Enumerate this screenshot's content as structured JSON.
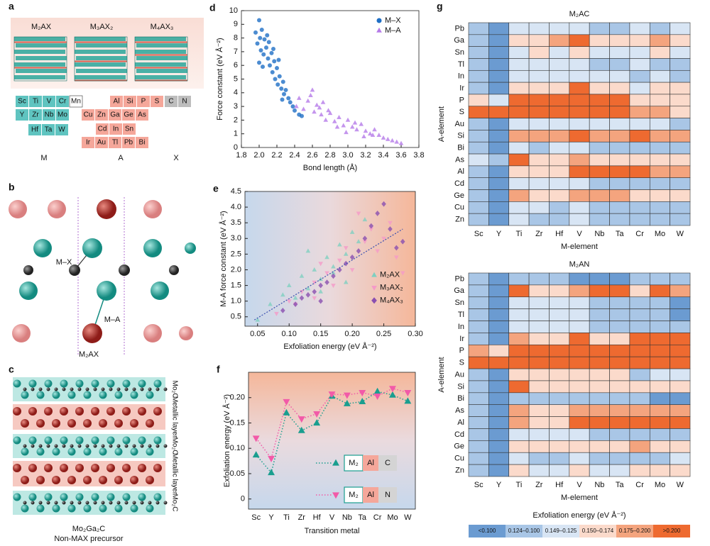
{
  "diagrams": {
    "a": {
      "panel": "a",
      "structures": [
        "M₂AX",
        "M₃AX₂",
        "M₄AX₃"
      ],
      "groups": [
        {
          "label": "M",
          "rows": [
            [
              "Sc",
              "Ti",
              "V",
              "Cr",
              "Mn"
            ],
            [
              "Y",
              "Zr",
              "Nb",
              "Mo"
            ],
            [
              "Hf",
              "Ta",
              "W"
            ]
          ]
        },
        {
          "label": "A",
          "rows": [
            [
              "Al",
              "Si",
              "P",
              "S"
            ],
            [
              "Cu",
              "Zn",
              "Ga",
              "Ge",
              "As"
            ],
            [
              "Cd",
              "In",
              "Sn"
            ],
            [
              "Ir",
              "Au",
              "Tl",
              "Pb",
              "Bi"
            ]
          ]
        },
        {
          "label": "X",
          "rows": [
            [
              "C",
              "N"
            ]
          ]
        }
      ]
    },
    "b": {
      "panel": "b",
      "bond_mx": "M–X",
      "bond_ma": "M–A",
      "caption": "M₂AX"
    },
    "c": {
      "panel": "c",
      "layers": [
        "Mo₂C",
        "Metallic layer",
        "Mo₂C",
        "Metallic layer",
        "Mo₂C"
      ],
      "caption": [
        "Mo₂Ga₂C",
        "Non-MAX precursor"
      ]
    }
  },
  "legend": {
    "title": "Exfoliation energy (eV Å⁻²)",
    "bins": [
      "<0.100",
      "0.124–0.100",
      "0.149–0.125",
      "0.150–0.174",
      "0.175–0.200",
      ">0.200"
    ],
    "colors": [
      "#6b9bd1",
      "#a9c6e6",
      "#d8e5f4",
      "#fbdacb",
      "#f4a47e",
      "#ee6a30"
    ]
  },
  "chart_data": [
    {
      "type": "scatter",
      "panel": "d",
      "x_label": "Bond length (Å)",
      "y_label": "Force constant (eV Å⁻²)",
      "xlim": [
        1.8,
        3.8
      ],
      "xticks": [
        1.8,
        {
          "value": 2,
          "label": "2.0"
        },
        2.2,
        2.4,
        2.6,
        2.8,
        {
          "value": 3,
          "label": "3.0"
        },
        3.2,
        3.4,
        3.6,
        3.8
      ],
      "ylim": [
        0,
        10
      ],
      "yticks": [
        0,
        1,
        2,
        3,
        4,
        5,
        6,
        7,
        8,
        9,
        10
      ],
      "legend_position": "upper right",
      "series": [
        {
          "name": "M–X",
          "color": "#1f6fc5",
          "marker": "circle",
          "x": [
            1.96,
            1.98,
            2.0,
            2.01,
            2.02,
            2.03,
            2.05,
            2.06,
            2.08,
            2.1,
            2.11,
            2.12,
            2.14,
            2.15,
            2.17,
            2.18,
            2.2,
            2.21,
            2.23,
            2.25,
            2.27,
            2.28,
            2.3,
            2.33,
            2.35,
            2.38,
            2.4,
            2.45,
            2.48,
            2.0,
            2.04,
            2.09,
            2.16,
            2.22,
            2.26
          ],
          "values": [
            8.4,
            7.6,
            9.3,
            8.0,
            7.1,
            8.6,
            6.8,
            7.9,
            7.3,
            6.5,
            7.7,
            6.0,
            6.9,
            5.5,
            6.3,
            5.0,
            5.8,
            4.6,
            5.2,
            4.3,
            4.8,
            3.9,
            4.2,
            3.6,
            3.3,
            3.0,
            2.7,
            2.4,
            2.3,
            6.2,
            5.9,
            8.2,
            7.2,
            6.4,
            3.5
          ]
        },
        {
          "name": "M–A",
          "color": "#b57be8",
          "marker": "triangle",
          "x": [
            2.42,
            2.45,
            2.5,
            2.55,
            2.6,
            2.62,
            2.65,
            2.7,
            2.72,
            2.75,
            2.8,
            2.85,
            2.9,
            2.95,
            3.0,
            3.05,
            3.1,
            3.15,
            3.2,
            3.25,
            3.3,
            3.35,
            3.4,
            3.45,
            3.5,
            3.55,
            3.6,
            2.58,
            2.68,
            2.78,
            2.88,
            2.98,
            3.08,
            3.18,
            3.28
          ],
          "values": [
            3.0,
            3.6,
            2.8,
            3.4,
            4.2,
            2.6,
            3.1,
            2.4,
            3.3,
            2.0,
            2.5,
            1.9,
            2.2,
            1.6,
            2.0,
            1.5,
            1.3,
            1.7,
            1.2,
            1.0,
            1.3,
            0.9,
            0.7,
            0.6,
            0.5,
            0.4,
            0.3,
            3.8,
            2.9,
            2.7,
            1.5,
            1.1,
            1.8,
            0.8,
            0.9
          ]
        }
      ]
    },
    {
      "type": "scatter",
      "panel": "e",
      "x_label": "Exfoliation energy (eV Å⁻²)",
      "y_label": "M-A force constant (eV Å⁻²)",
      "background": "horizontal",
      "legend_position": "lower right",
      "xlim": [
        0.03,
        0.3
      ],
      "xticks": [
        0.05,
        {
          "value": 0.1,
          "label": "0.10"
        },
        0.15,
        {
          "value": 0.2,
          "label": "0.20"
        },
        0.25,
        {
          "value": 0.3,
          "label": "0.30"
        }
      ],
      "ylim": [
        0.2,
        4.5
      ],
      "yticks": [
        0.5,
        {
          "value": 1,
          "label": "1.0"
        },
        1.5,
        {
          "value": 2,
          "label": "2.0"
        },
        2.5,
        {
          "value": 3,
          "label": "3.0"
        },
        3.5,
        {
          "value": 4,
          "label": "4.0"
        },
        4.5
      ],
      "trend": {
        "color": "#3a4fb0",
        "x": [
          0.045,
          0.28
        ],
        "values": [
          0.4,
          3.3
        ]
      },
      "series": [
        {
          "name": "M₂AX",
          "color": "#7fcfc0",
          "marker": "triangle",
          "x": [
            0.05,
            0.07,
            0.09,
            0.1,
            0.11,
            0.12,
            0.13,
            0.14,
            0.15,
            0.16,
            0.17,
            0.18,
            0.19,
            0.2,
            0.21,
            0.22,
            0.13,
            0.15,
            0.17,
            0.19
          ],
          "values": [
            0.4,
            0.9,
            1.2,
            1.5,
            1.1,
            1.8,
            1.4,
            2.0,
            1.7,
            2.4,
            2.1,
            2.8,
            2.5,
            3.2,
            2.9,
            3.6,
            2.6,
            1.3,
            1.9,
            1.6
          ]
        },
        {
          "name": "M₃AX₂",
          "color": "#f59ac8",
          "marker": "triangle-down",
          "x": [
            0.08,
            0.1,
            0.12,
            0.14,
            0.15,
            0.16,
            0.18,
            0.19,
            0.2,
            0.22,
            0.23,
            0.24,
            0.25,
            0.26,
            0.27,
            0.28,
            0.14,
            0.17,
            0.21,
            0.11
          ],
          "values": [
            0.6,
            1.0,
            1.3,
            1.6,
            2.2,
            1.9,
            2.3,
            2.7,
            2.0,
            2.9,
            3.3,
            2.6,
            3.0,
            3.5,
            2.4,
            1.9,
            1.1,
            1.5,
            3.8,
            0.9
          ]
        },
        {
          "name": "M₄AX₃",
          "color": "#8a4fb0",
          "marker": "diamond",
          "x": [
            0.09,
            0.11,
            0.12,
            0.13,
            0.14,
            0.15,
            0.16,
            0.17,
            0.18,
            0.19,
            0.2,
            0.21,
            0.22,
            0.23,
            0.24,
            0.25,
            0.26,
            0.27,
            0.28,
            0.15
          ],
          "values": [
            0.7,
            0.9,
            1.1,
            1.2,
            1.3,
            1.5,
            1.6,
            1.8,
            2.0,
            2.2,
            2.4,
            2.6,
            3.0,
            3.4,
            3.8,
            4.1,
            3.3,
            2.7,
            2.9,
            1.0
          ]
        }
      ]
    },
    {
      "type": "line",
      "panel": "f",
      "x_label": "Transition metal",
      "y_label": "Exfoliation energy (eV Å⁻²)",
      "background": "vertical",
      "categories": [
        "Sc",
        "Y",
        "Ti",
        "Zr",
        "Hf",
        "V",
        "Nb",
        "Ta",
        "Cr",
        "Mo",
        "W"
      ],
      "ylim": [
        -0.02,
        0.25
      ],
      "yticks": [
        0,
        0.05,
        {
          "value": 0.1,
          "label": "0.10"
        },
        0.15,
        {
          "value": 0.2,
          "label": "0.20"
        }
      ],
      "series": [
        {
          "label_boxes": [
            "M₂",
            "Al",
            "C"
          ],
          "color": "#1a9e8f",
          "marker": "triangle",
          "values": [
            0.087,
            0.052,
            0.17,
            0.135,
            0.15,
            0.203,
            0.188,
            0.192,
            0.212,
            0.205,
            0.193
          ]
        },
        {
          "label_boxes": [
            "M₂",
            "Al",
            "N"
          ],
          "color": "#f25aa8",
          "marker": "triangle-down",
          "values": [
            0.12,
            0.08,
            0.192,
            0.158,
            0.168,
            0.207,
            0.205,
            0.21,
            0.203,
            0.218,
            0.21
          ]
        }
      ]
    },
    {
      "type": "heatmap",
      "panel": "g",
      "title": "M₂AC",
      "x_label": "M-element",
      "y_label": "A-element",
      "columns": [
        "Sc",
        "Y",
        "Ti",
        "Zr",
        "Hf",
        "V",
        "Nb",
        "Ta",
        "Cr",
        "Mo",
        "W"
      ],
      "rows": [
        "Pb",
        "Ga",
        "Sn",
        "Tl",
        "In",
        "Ir",
        "P",
        "S",
        "Au",
        "Si",
        "Bi",
        "As",
        "Al",
        "Cd",
        "Ge",
        "Cu",
        "Zn"
      ],
      "values": [
        [
          1,
          0,
          2,
          2,
          2,
          2,
          1,
          1,
          2,
          1,
          2
        ],
        [
          1,
          0,
          3,
          3,
          4,
          5,
          3,
          3,
          3,
          4,
          3
        ],
        [
          1,
          0,
          2,
          3,
          2,
          3,
          2,
          2,
          2,
          3,
          2
        ],
        [
          1,
          0,
          2,
          2,
          2,
          2,
          1,
          1,
          2,
          1,
          1
        ],
        [
          1,
          0,
          2,
          2,
          2,
          2,
          2,
          2,
          1,
          2,
          1
        ],
        [
          1,
          0,
          3,
          3,
          3,
          5,
          3,
          3,
          2,
          3,
          3
        ],
        [
          3,
          2,
          5,
          5,
          5,
          5,
          5,
          5,
          3,
          3,
          3
        ],
        [
          5,
          5,
          5,
          5,
          5,
          5,
          5,
          5,
          4,
          4,
          3
        ],
        [
          1,
          0,
          2,
          2,
          2,
          2,
          2,
          2,
          2,
          2,
          1
        ],
        [
          1,
          0,
          4,
          4,
          4,
          5,
          4,
          4,
          5,
          4,
          4
        ],
        [
          1,
          0,
          2,
          1,
          2,
          2,
          1,
          1,
          1,
          1,
          1
        ],
        [
          2,
          1,
          5,
          3,
          3,
          4,
          3,
          3,
          3,
          3,
          3
        ],
        [
          1,
          0,
          3,
          3,
          3,
          5,
          5,
          5,
          5,
          4,
          4
        ],
        [
          1,
          0,
          2,
          2,
          2,
          2,
          1,
          1,
          1,
          1,
          1
        ],
        [
          1,
          0,
          4,
          3,
          3,
          4,
          4,
          4,
          3,
          3,
          3
        ],
        [
          1,
          0,
          2,
          2,
          1,
          2,
          1,
          1,
          1,
          1,
          1
        ],
        [
          1,
          0,
          2,
          1,
          1,
          2,
          1,
          1,
          1,
          1,
          1
        ]
      ]
    },
    {
      "type": "heatmap",
      "title": "M₂AN",
      "x_label": "M-element",
      "y_label": "A-element",
      "columns": [
        "Sc",
        "Y",
        "Ti",
        "Zr",
        "Hf",
        "V",
        "Nb",
        "Ta",
        "Cr",
        "Mo",
        "W"
      ],
      "rows": [
        "Pb",
        "Ga",
        "Sn",
        "Tl",
        "In",
        "Ir",
        "P",
        "S",
        "Au",
        "Si",
        "Bi",
        "As",
        "Al",
        "Cd",
        "Ge",
        "Cu",
        "Zn"
      ],
      "values": [
        [
          1,
          0,
          1,
          1,
          1,
          0,
          0,
          0,
          1,
          1,
          1
        ],
        [
          1,
          0,
          5,
          3,
          3,
          4,
          5,
          5,
          3,
          5,
          4
        ],
        [
          1,
          0,
          2,
          2,
          2,
          2,
          1,
          1,
          1,
          1,
          0
        ],
        [
          1,
          0,
          2,
          2,
          2,
          2,
          1,
          1,
          1,
          1,
          0
        ],
        [
          1,
          0,
          2,
          2,
          2,
          2,
          1,
          1,
          1,
          1,
          1
        ],
        [
          1,
          0,
          4,
          3,
          3,
          5,
          3,
          3,
          5,
          5,
          5
        ],
        [
          4,
          3,
          5,
          5,
          5,
          5,
          5,
          5,
          5,
          5,
          5
        ],
        [
          5,
          5,
          5,
          5,
          5,
          5,
          5,
          5,
          5,
          5,
          5
        ],
        [
          1,
          0,
          3,
          3,
          3,
          3,
          3,
          3,
          1,
          2,
          2
        ],
        [
          1,
          0,
          5,
          3,
          3,
          3,
          3,
          3,
          3,
          3,
          3
        ],
        [
          1,
          0,
          1,
          1,
          1,
          1,
          1,
          1,
          1,
          0,
          0
        ],
        [
          1,
          0,
          4,
          3,
          3,
          4,
          4,
          4,
          4,
          4,
          4
        ],
        [
          1,
          0,
          4,
          3,
          3,
          5,
          5,
          5,
          5,
          5,
          5
        ],
        [
          1,
          0,
          2,
          2,
          2,
          2,
          1,
          1,
          1,
          1,
          1
        ],
        [
          1,
          0,
          3,
          3,
          3,
          3,
          3,
          3,
          4,
          3,
          3
        ],
        [
          1,
          0,
          2,
          1,
          1,
          2,
          1,
          1,
          1,
          1,
          2
        ],
        [
          1,
          0,
          3,
          2,
          2,
          3,
          2,
          2,
          3,
          3,
          3
        ]
      ]
    }
  ]
}
